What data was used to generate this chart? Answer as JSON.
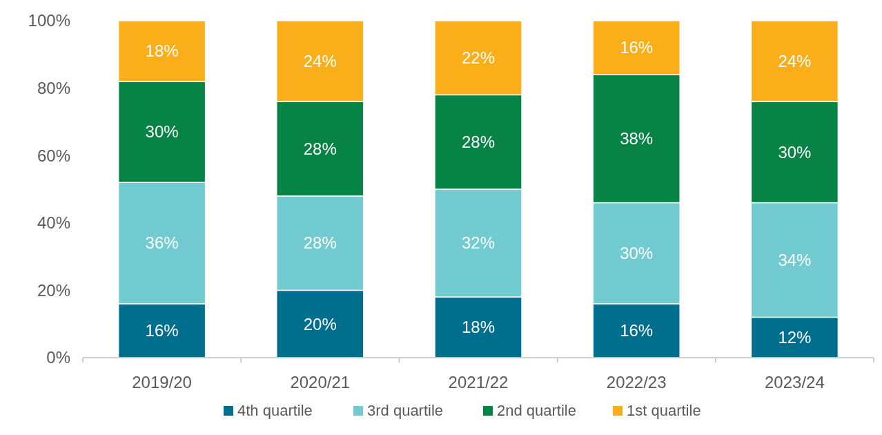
{
  "chart_data": {
    "type": "bar",
    "stacked": true,
    "categories": [
      "2019/20",
      "2020/21",
      "2021/22",
      "2022/23",
      "2023/24"
    ],
    "series": [
      {
        "name": "4th quartile",
        "color": "#006f8e",
        "values": [
          16,
          20,
          18,
          16,
          12
        ],
        "value_labels": [
          "16%",
          "20%",
          "18%",
          "16%",
          "12%"
        ]
      },
      {
        "name": "3rd quartile",
        "color": "#72cbd1",
        "values": [
          36,
          28,
          32,
          30,
          34
        ],
        "value_labels": [
          "36%",
          "28%",
          "32%",
          "30%",
          "34%"
        ]
      },
      {
        "name": "2nd quartile",
        "color": "#078346",
        "values": [
          30,
          28,
          28,
          38,
          30
        ],
        "value_labels": [
          "30%",
          "28%",
          "28%",
          "38%",
          "30%"
        ]
      },
      {
        "name": "1st quartile",
        "color": "#f9ae1a",
        "values": [
          18,
          24,
          22,
          16,
          24
        ],
        "value_labels": [
          "18%",
          "24%",
          "22%",
          "16%",
          "24%"
        ]
      }
    ],
    "ylim": [
      0,
      100
    ],
    "yticks": [
      {
        "value": 0,
        "label": "0%"
      },
      {
        "value": 20,
        "label": "20%"
      },
      {
        "value": 40,
        "label": "40%"
      },
      {
        "value": 60,
        "label": "60%"
      },
      {
        "value": 80,
        "label": "80%"
      },
      {
        "value": 100,
        "label": "100%"
      }
    ],
    "legend": "bottom",
    "grid": false
  }
}
